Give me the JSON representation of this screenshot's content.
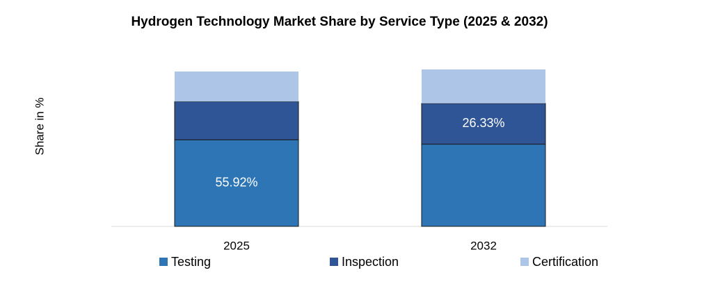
{
  "chart_data": {
    "type": "stacked_bar",
    "title": "Hydrogen Technology Market Share by Service Type (2025 & 2032)",
    "y_label": "Share in %",
    "categories": [
      "2025",
      "2032"
    ],
    "series": [
      {
        "name": "Testing",
        "color": "#2e75b6",
        "values": [
          55.92,
          53.1
        ],
        "value_labels": [
          "55.92%",
          null
        ]
      },
      {
        "name": "Inspection",
        "color": "#2f5597",
        "values": [
          24.7,
          26.33
        ],
        "value_labels": [
          null,
          "26.33%"
        ]
      },
      {
        "name": "Certification",
        "color": "#adc5e7",
        "values": [
          19.38,
          21.9
        ]
      }
    ],
    "ylim": [
      0,
      100
    ],
    "legend": "bottom"
  }
}
